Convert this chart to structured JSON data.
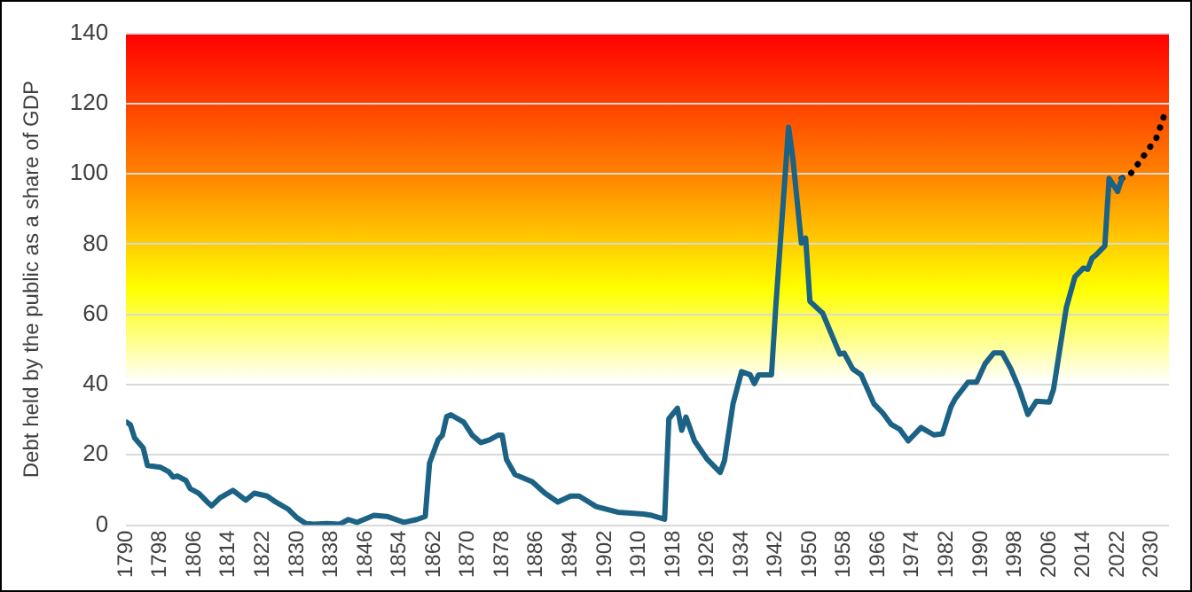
{
  "chart_data": {
    "type": "line",
    "ylabel": "Debt held by the public as a share of GDP",
    "xlim": [
      1790,
      2034
    ],
    "xticks": [
      1790,
      1798,
      1806,
      1814,
      1822,
      1830,
      1838,
      1846,
      1854,
      1862,
      1870,
      1878,
      1886,
      1894,
      1902,
      1910,
      1918,
      1926,
      1934,
      1942,
      1950,
      1958,
      1966,
      1974,
      1982,
      1990,
      1998,
      2006,
      2014,
      2022,
      2030
    ],
    "ylim": [
      0,
      140
    ],
    "yticks": [
      0,
      20,
      40,
      60,
      80,
      100,
      120,
      140
    ],
    "grid": "y",
    "legend": false,
    "marker": "none",
    "series": [
      {
        "color": "#1b6285",
        "line_style": "solid",
        "x": [
          1790,
          1791,
          1792,
          1794,
          1795,
          1798,
          1800,
          1801,
          1802,
          1804,
          1805,
          1807,
          1809,
          1810,
          1812,
          1815,
          1818,
          1820,
          1823,
          1825,
          1828,
          1830,
          1832,
          1834,
          1837,
          1840,
          1842,
          1844,
          1848,
          1851,
          1855,
          1858,
          1860,
          1861,
          1863,
          1864,
          1865,
          1866,
          1869,
          1871,
          1873,
          1875,
          1877,
          1878,
          1879,
          1881,
          1885,
          1888,
          1891,
          1894,
          1896,
          1900,
          1905,
          1911,
          1913,
          1916,
          1917,
          1919,
          1920,
          1921,
          1923,
          1926,
          1929,
          1930,
          1932,
          1934,
          1936,
          1937,
          1938,
          1941,
          1942,
          1945,
          1946,
          1948,
          1949,
          1950,
          1953,
          1955,
          1957,
          1958,
          1960,
          1962,
          1965,
          1967,
          1969,
          1971,
          1973,
          1976,
          1979,
          1981,
          1983,
          1984,
          1987,
          1989,
          1991,
          1993,
          1995,
          1997,
          1999,
          2001,
          2003,
          2006,
          2007,
          2010,
          2012,
          2014,
          2015,
          2016,
          2017,
          2019,
          2020,
          2022,
          2023
        ],
        "values": [
          29.4,
          28.6,
          24.8,
          22,
          17,
          16.5,
          15.2,
          13.7,
          14,
          12.7,
          10.4,
          9.1,
          6.6,
          5.5,
          7.8,
          9.9,
          7.1,
          9.1,
          8.3,
          6.6,
          4.5,
          2.1,
          0.5,
          0.3,
          0.5,
          0.3,
          1.6,
          0.8,
          2.8,
          2.5,
          0.8,
          1.6,
          2.5,
          17.7,
          24.3,
          25.6,
          30.9,
          31.4,
          29.3,
          25.6,
          23.5,
          24.3,
          25.6,
          25.6,
          18.7,
          14.4,
          12.4,
          9.1,
          6.6,
          8.3,
          8.3,
          5.3,
          3.7,
          3.2,
          2.8,
          1.7,
          30.3,
          33.3,
          27,
          30.8,
          24,
          18.7,
          15,
          18.3,
          34.5,
          43.7,
          42.8,
          40.3,
          42.8,
          42.8,
          62,
          113.3,
          104.5,
          80.3,
          81.7,
          63.7,
          60.3,
          54.5,
          48.7,
          49,
          44.5,
          42.8,
          34.5,
          32,
          28.7,
          27.3,
          24,
          27.8,
          25.7,
          26,
          33.7,
          36,
          40.7,
          40.7,
          46,
          49,
          49,
          44.5,
          38.7,
          31.5,
          35.3,
          35,
          38.7,
          62,
          70.7,
          73.2,
          72.8,
          76,
          77,
          79.5,
          98.7,
          95,
          98.7
        ]
      },
      {
        "color": "#000000",
        "line_style": "dotted",
        "x": [
          2023,
          2025,
          2027,
          2029,
          2031,
          2033
        ],
        "values": [
          98.7,
          100,
          103.2,
          106.7,
          110,
          117
        ]
      }
    ]
  }
}
